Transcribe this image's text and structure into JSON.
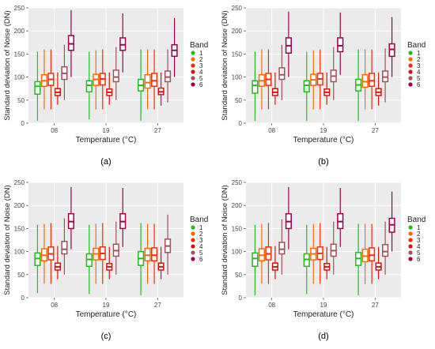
{
  "figure": {
    "panel_labels": [
      "(a)",
      "(b)",
      "(c)",
      "(d)"
    ]
  },
  "legend": {
    "title": "Band",
    "items": [
      "1",
      "2",
      "3",
      "4",
      "5",
      "6"
    ]
  },
  "colors": {
    "bands": [
      "#22bb22",
      "#ff6a00",
      "#ff2a00",
      "#dd1111",
      "#a0525a",
      "#a0004a"
    ],
    "panel_background": "#ebebeb",
    "grid": "#ffffff"
  },
  "chart_data": [
    {
      "type": "box",
      "panel": "(a)",
      "xlabel": "Temperature (°C)",
      "ylabel": "Standard deviation of Noise (DN)",
      "categories": [
        "08",
        "19",
        "27"
      ],
      "series_names": [
        "1",
        "2",
        "3",
        "4",
        "5",
        "6"
      ],
      "ylim": [
        0,
        250
      ],
      "yticks": [
        0,
        50,
        100,
        150,
        200,
        250
      ],
      "grid": true,
      "legend_position": "right",
      "boxes": [
        [
          {
            "min": 5,
            "q1": 63,
            "median": 80,
            "q3": 90,
            "max": 155
          },
          {
            "min": 30,
            "q1": 80,
            "median": 92,
            "q3": 105,
            "max": 160
          },
          {
            "min": 30,
            "q1": 82,
            "median": 95,
            "q3": 108,
            "max": 160
          },
          {
            "min": 40,
            "q1": 60,
            "median": 67,
            "q3": 75,
            "max": 110
          },
          {
            "min": 50,
            "q1": 95,
            "median": 108,
            "q3": 122,
            "max": 170
          },
          {
            "min": 100,
            "q1": 158,
            "median": 172,
            "q3": 190,
            "max": 245
          }
        ],
        [
          {
            "min": 8,
            "q1": 68,
            "median": 82,
            "q3": 92,
            "max": 155
          },
          {
            "min": 30,
            "q1": 82,
            "median": 95,
            "q3": 106,
            "max": 158
          },
          {
            "min": 30,
            "q1": 83,
            "median": 96,
            "q3": 108,
            "max": 160
          },
          {
            "min": 40,
            "q1": 60,
            "median": 67,
            "q3": 74,
            "max": 110
          },
          {
            "min": 50,
            "q1": 90,
            "median": 100,
            "q3": 115,
            "max": 165
          },
          {
            "min": 110,
            "q1": 158,
            "median": 170,
            "q3": 185,
            "max": 238
          }
        ],
        [
          {
            "min": 5,
            "q1": 70,
            "median": 82,
            "q3": 95,
            "max": 160
          },
          {
            "min": 30,
            "q1": 76,
            "median": 88,
            "q3": 105,
            "max": 160
          },
          {
            "min": 30,
            "q1": 80,
            "median": 92,
            "q3": 108,
            "max": 160
          },
          {
            "min": 38,
            "q1": 62,
            "median": 68,
            "q3": 76,
            "max": 110
          },
          {
            "min": 45,
            "q1": 90,
            "median": 100,
            "q3": 113,
            "max": 160
          },
          {
            "min": 100,
            "q1": 145,
            "median": 158,
            "q3": 170,
            "max": 228
          }
        ]
      ]
    },
    {
      "type": "box",
      "panel": "(b)",
      "xlabel": "Temperature (°C)",
      "ylabel": "Standard deviation of Noise (DN)",
      "categories": [
        "08",
        "19",
        "27"
      ],
      "series_names": [
        "1",
        "2",
        "3",
        "4",
        "5",
        "6"
      ],
      "ylim": [
        0,
        250
      ],
      "yticks": [
        0,
        50,
        100,
        150,
        200,
        250
      ],
      "grid": true,
      "legend_position": "right",
      "boxes": [
        [
          {
            "min": 5,
            "q1": 65,
            "median": 82,
            "q3": 92,
            "max": 155
          },
          {
            "min": 30,
            "q1": 80,
            "median": 92,
            "q3": 105,
            "max": 160
          },
          {
            "min": 30,
            "q1": 82,
            "median": 95,
            "q3": 108,
            "max": 160
          },
          {
            "min": 40,
            "q1": 60,
            "median": 67,
            "q3": 75,
            "max": 110
          },
          {
            "min": 50,
            "q1": 95,
            "median": 105,
            "q3": 120,
            "max": 170
          },
          {
            "min": 100,
            "q1": 152,
            "median": 168,
            "q3": 185,
            "max": 242
          }
        ],
        [
          {
            "min": 5,
            "q1": 68,
            "median": 82,
            "q3": 92,
            "max": 155
          },
          {
            "min": 30,
            "q1": 82,
            "median": 94,
            "q3": 106,
            "max": 158
          },
          {
            "min": 30,
            "q1": 83,
            "median": 96,
            "q3": 108,
            "max": 160
          },
          {
            "min": 40,
            "q1": 60,
            "median": 67,
            "q3": 74,
            "max": 110
          },
          {
            "min": 50,
            "q1": 90,
            "median": 102,
            "q3": 115,
            "max": 165
          },
          {
            "min": 105,
            "q1": 155,
            "median": 168,
            "q3": 185,
            "max": 240
          }
        ],
        [
          {
            "min": 5,
            "q1": 70,
            "median": 83,
            "q3": 95,
            "max": 160
          },
          {
            "min": 30,
            "q1": 78,
            "median": 90,
            "q3": 105,
            "max": 160
          },
          {
            "min": 30,
            "q1": 80,
            "median": 92,
            "q3": 108,
            "max": 160
          },
          {
            "min": 38,
            "q1": 60,
            "median": 67,
            "q3": 75,
            "max": 110
          },
          {
            "min": 45,
            "q1": 90,
            "median": 100,
            "q3": 113,
            "max": 162
          },
          {
            "min": 100,
            "q1": 145,
            "median": 160,
            "q3": 172,
            "max": 230
          }
        ]
      ]
    },
    {
      "type": "box",
      "panel": "(c)",
      "xlabel": "Temperature (°C)",
      "ylabel": "Standard deviation of Noise (DN)",
      "categories": [
        "08",
        "19",
        "27"
      ],
      "series_names": [
        "1",
        "2",
        "3",
        "4",
        "5",
        "6"
      ],
      "ylim": [
        0,
        250
      ],
      "yticks": [
        0,
        50,
        100,
        150,
        200,
        250
      ],
      "grid": true,
      "legend_position": "right",
      "boxes": [
        [
          {
            "min": 10,
            "q1": 70,
            "median": 85,
            "q3": 97,
            "max": 158
          },
          {
            "min": 30,
            "q1": 80,
            "median": 92,
            "q3": 106,
            "max": 160
          },
          {
            "min": 30,
            "q1": 82,
            "median": 95,
            "q3": 110,
            "max": 162
          },
          {
            "min": 40,
            "q1": 60,
            "median": 67,
            "q3": 75,
            "max": 112
          },
          {
            "min": 50,
            "q1": 95,
            "median": 105,
            "q3": 122,
            "max": 172
          },
          {
            "min": 105,
            "q1": 150,
            "median": 165,
            "q3": 182,
            "max": 240
          }
        ],
        [
          {
            "min": 8,
            "q1": 68,
            "median": 83,
            "q3": 95,
            "max": 158
          },
          {
            "min": 30,
            "q1": 82,
            "median": 95,
            "q3": 107,
            "max": 160
          },
          {
            "min": 30,
            "q1": 83,
            "median": 96,
            "q3": 110,
            "max": 162
          },
          {
            "min": 40,
            "q1": 60,
            "median": 67,
            "q3": 74,
            "max": 110
          },
          {
            "min": 50,
            "q1": 90,
            "median": 102,
            "q3": 116,
            "max": 165
          },
          {
            "min": 110,
            "q1": 150,
            "median": 165,
            "q3": 182,
            "max": 238
          }
        ],
        [
          {
            "min": 5,
            "q1": 70,
            "median": 85,
            "q3": 100,
            "max": 162
          },
          {
            "min": 30,
            "q1": 80,
            "median": 92,
            "q3": 107,
            "max": 160
          },
          {
            "min": 30,
            "q1": 80,
            "median": 92,
            "q3": 108,
            "max": 160
          },
          {
            "min": 40,
            "q1": 60,
            "median": 67,
            "q3": 75,
            "max": 110
          },
          {
            "min": 50,
            "q1": 98,
            "median": 112,
            "q3": 127,
            "max": 180
          },
          {
            "min": 0,
            "q1": 0,
            "median": 0,
            "q3": 0,
            "max": 0
          }
        ]
      ]
    },
    {
      "type": "box",
      "panel": "(d)",
      "xlabel": "Temperature (°C)",
      "ylabel": "Standard deviation of Noise (DN)",
      "categories": [
        "08",
        "19",
        "27"
      ],
      "series_names": [
        "1",
        "2",
        "3",
        "4",
        "5",
        "6"
      ],
      "ylim": [
        0,
        250
      ],
      "yticks": [
        0,
        50,
        100,
        150,
        200,
        250
      ],
      "grid": true,
      "legend_position": "right",
      "boxes": [
        [
          {
            "min": 5,
            "q1": 68,
            "median": 85,
            "q3": 97,
            "max": 158
          },
          {
            "min": 30,
            "q1": 80,
            "median": 92,
            "q3": 106,
            "max": 160
          },
          {
            "min": 30,
            "q1": 82,
            "median": 95,
            "q3": 110,
            "max": 162
          },
          {
            "min": 40,
            "q1": 60,
            "median": 67,
            "q3": 75,
            "max": 112
          },
          {
            "min": 50,
            "q1": 95,
            "median": 105,
            "q3": 120,
            "max": 170
          },
          {
            "min": 105,
            "q1": 150,
            "median": 165,
            "q3": 182,
            "max": 240
          }
        ],
        [
          {
            "min": 8,
            "q1": 68,
            "median": 83,
            "q3": 95,
            "max": 158
          },
          {
            "min": 30,
            "q1": 82,
            "median": 95,
            "q3": 107,
            "max": 160
          },
          {
            "min": 30,
            "q1": 83,
            "median": 96,
            "q3": 110,
            "max": 162
          },
          {
            "min": 40,
            "q1": 60,
            "median": 67,
            "q3": 74,
            "max": 110
          },
          {
            "min": 50,
            "q1": 90,
            "median": 102,
            "q3": 116,
            "max": 165
          },
          {
            "min": 110,
            "q1": 150,
            "median": 165,
            "q3": 182,
            "max": 238
          }
        ],
        [
          {
            "min": 5,
            "q1": 70,
            "median": 85,
            "q3": 98,
            "max": 160
          },
          {
            "min": 30,
            "q1": 78,
            "median": 90,
            "q3": 105,
            "max": 160
          },
          {
            "min": 30,
            "q1": 80,
            "median": 92,
            "q3": 108,
            "max": 160
          },
          {
            "min": 40,
            "q1": 60,
            "median": 67,
            "q3": 75,
            "max": 110
          },
          {
            "min": 50,
            "q1": 90,
            "median": 100,
            "q3": 115,
            "max": 165
          },
          {
            "min": 100,
            "q1": 142,
            "median": 158,
            "q3": 172,
            "max": 230
          }
        ]
      ]
    }
  ]
}
